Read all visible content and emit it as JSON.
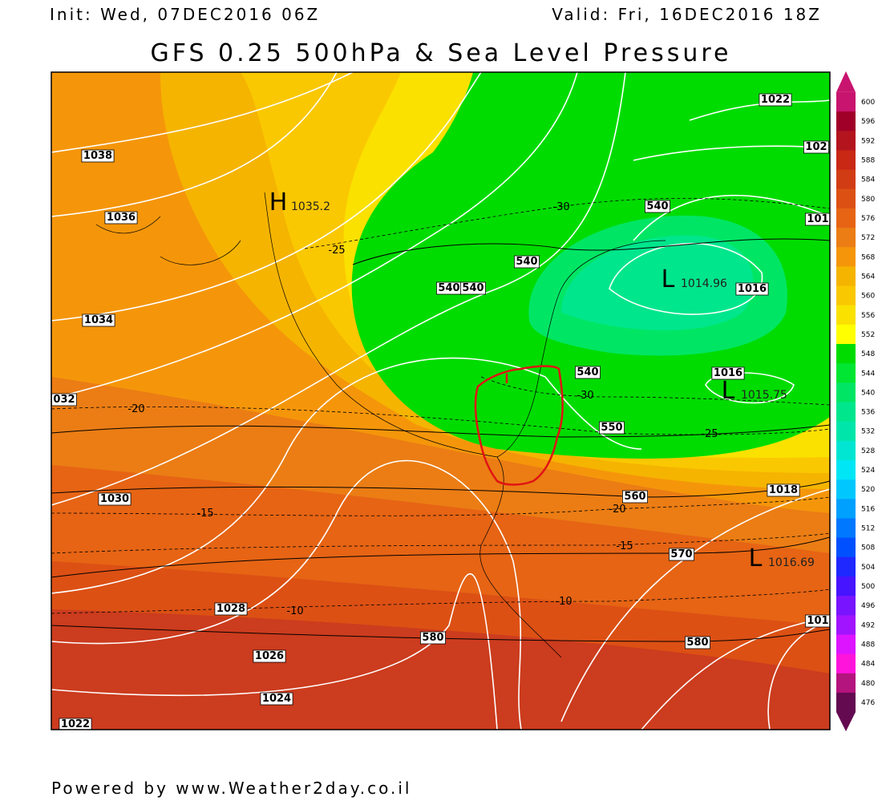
{
  "header": {
    "init": "Init: Wed, 07DEC2016 06Z",
    "valid": "Valid: Fri, 16DEC2016 18Z",
    "title": "GFS 0.25 500hPa & Sea Level Pressure"
  },
  "map": {
    "isobar_labels": [
      "1038",
      "1036",
      "1034",
      "032",
      "1030",
      "1028",
      "1026",
      "1024",
      "1022",
      "1022",
      "102",
      "101",
      "1016",
      "1016",
      "1018",
      "101"
    ],
    "height_labels": [
      "540",
      "540",
      "540",
      "540",
      "540",
      "550",
      "560",
      "570",
      "580",
      "580"
    ],
    "temperature_labels": [
      "-30",
      "-25",
      "-20",
      "-15",
      "-10",
      "-30",
      "-25",
      "-20",
      "-15",
      "-10"
    ],
    "centers": [
      {
        "symbol": "H",
        "value": "1035.2"
      },
      {
        "symbol": "L",
        "value": "1014.96"
      },
      {
        "symbol": "L",
        "value": "1015.75"
      },
      {
        "symbol": "L",
        "value": "1016.69"
      }
    ]
  },
  "colorbar": {
    "labels": [
      600,
      596,
      592,
      588,
      584,
      580,
      576,
      572,
      568,
      564,
      560,
      556,
      552,
      548,
      544,
      540,
      536,
      532,
      528,
      524,
      520,
      516,
      512,
      508,
      504,
      500,
      496,
      492,
      488,
      484,
      480,
      476
    ],
    "colors": [
      "#c8146e",
      "#a00028",
      "#b4141e",
      "#c82814",
      "#d23c14",
      "#dc5014",
      "#e66414",
      "#eb7d14",
      "#f5960a",
      "#f5b400",
      "#fac800",
      "#fae100",
      "#ffff00",
      "#00dc00",
      "#00e632",
      "#00e664",
      "#00e68c",
      "#00e6aa",
      "#00e6d2",
      "#00e6f5",
      "#00c8ff",
      "#00a0ff",
      "#0078ff",
      "#0050ff",
      "#1e28ff",
      "#4614ff",
      "#7814ff",
      "#a014ff",
      "#dc14ff",
      "#ff14dc",
      "#b4147d",
      "#640a50"
    ]
  },
  "footer": "Powered by www.Weather2day.co.il"
}
